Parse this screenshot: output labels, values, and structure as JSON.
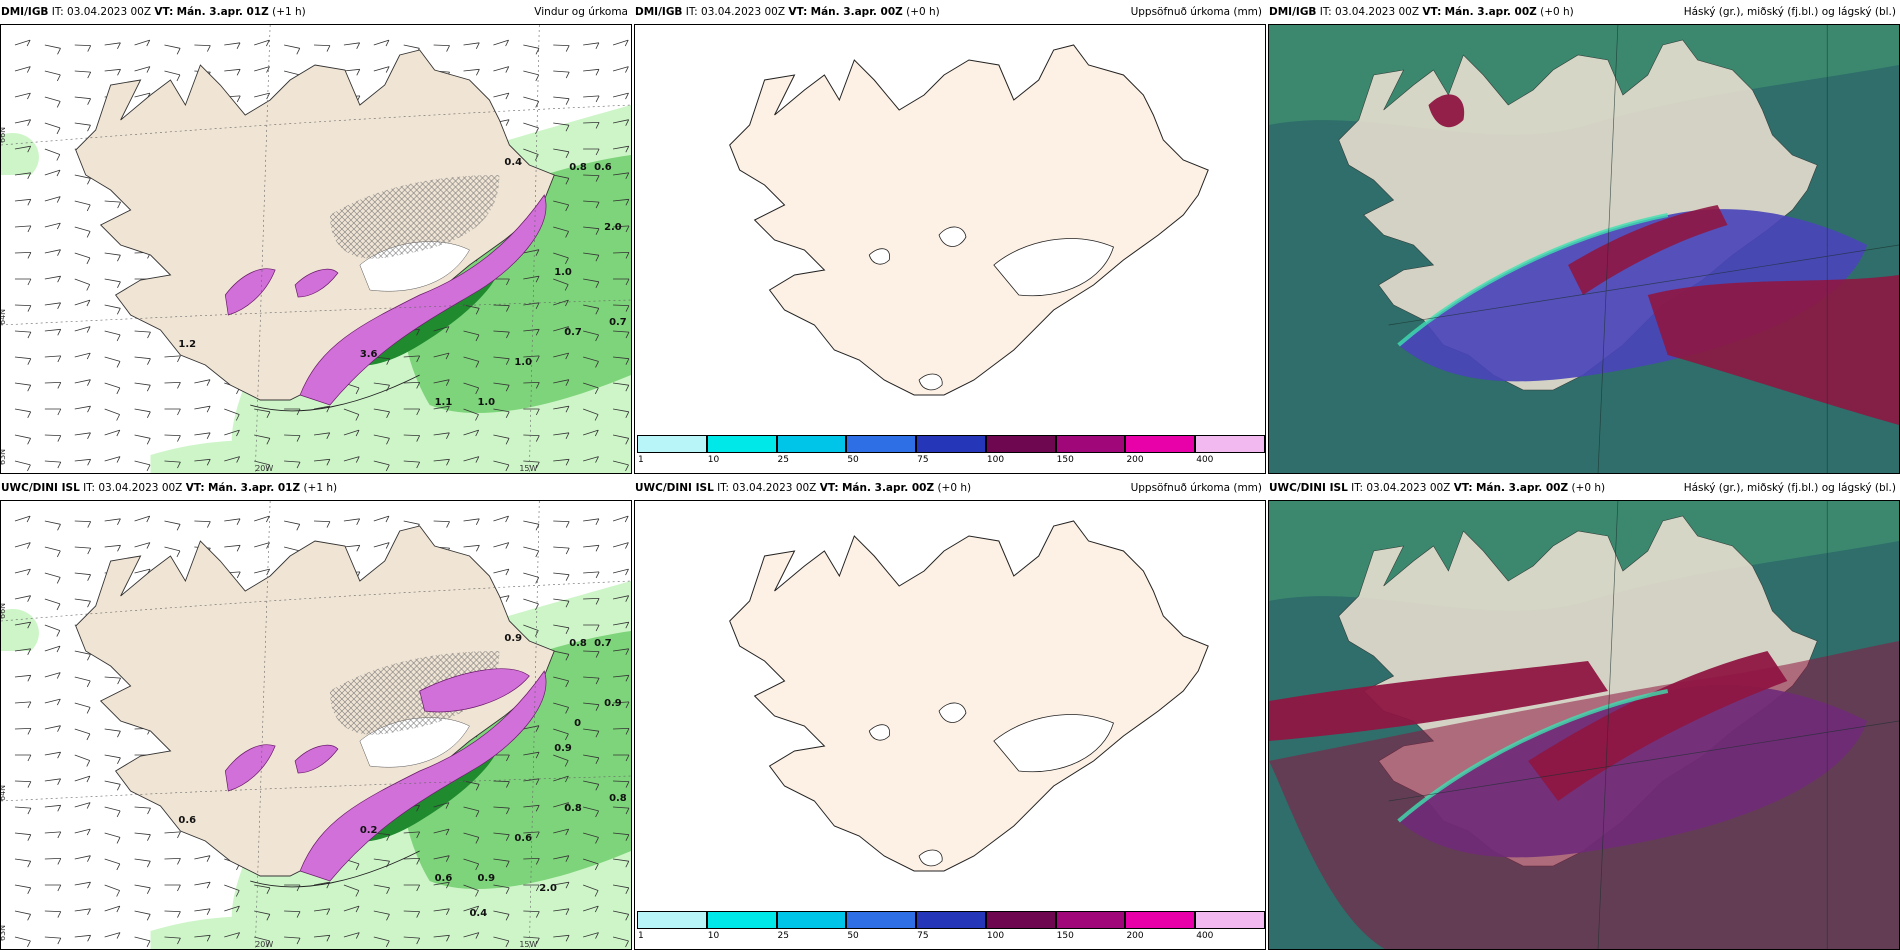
{
  "panels": [
    {
      "model": "DMI/IGB",
      "it": "IT: 03.04.2023 00Z",
      "vt_label": "VT:",
      "vt": "Mán. 3.apr. 01Z",
      "lead": "(+1 h)",
      "right": "Vindur og úrkoma"
    },
    {
      "model": "DMI/IGB",
      "it": "IT: 03.04.2023 00Z",
      "vt_label": "VT:",
      "vt": "Mán. 3.apr. 00Z",
      "lead": "(+0 h)",
      "right": "Uppsöfnuð úrkoma (mm)"
    },
    {
      "model": "DMI/IGB",
      "it": "IT: 03.04.2023 00Z",
      "vt_label": "VT:",
      "vt": "Mán. 3.apr. 00Z",
      "lead": "(+0 h)",
      "right": "Háský (gr.), miðský (fj.bl.) og lágský (bl.)"
    },
    {
      "model": "UWC/DINI ISL",
      "it": "IT: 03.04.2023 00Z",
      "vt_label": "VT:",
      "vt": "Mán. 3.apr. 01Z",
      "lead": "(+1 h)",
      "right": ""
    },
    {
      "model": "UWC/DINI ISL",
      "it": "IT: 03.04.2023 00Z",
      "vt_label": "VT:",
      "vt": "Mán. 3.apr. 00Z",
      "lead": "(+0 h)",
      "right": "Uppsöfnuð úrkoma (mm)"
    },
    {
      "model": "UWC/DINI ISL",
      "it": "IT: 03.04.2023 00Z",
      "vt_label": "VT:",
      "vt": "Mán. 3.apr. 00Z",
      "lead": "(+0 h)",
      "right": "Háský (gr.), miðský (fj.bl.) og lágský (bl.)"
    }
  ],
  "grid_labels": {
    "lat66": "66N",
    "lat64": "64N",
    "lat63": "63N",
    "lon20": "20W",
    "lon15": "15W"
  },
  "precip_values_top": [
    "0.8",
    "0.6",
    "2.0",
    "1.0",
    "0.7",
    "0.7",
    "1.0",
    "1.1",
    "1.0",
    "1.2",
    "3.6",
    "0.4"
  ],
  "precip_values_bottom": [
    "0.8",
    "0.7",
    "0.9",
    "0.9",
    "0.8",
    "0.8",
    "0.6",
    "0.6",
    "0.9",
    "0.6",
    "0.2",
    "0.9",
    "0.4",
    "2.0",
    "0"
  ],
  "colorbar": {
    "ticks": [
      "1",
      "10",
      "25",
      "50",
      "75",
      "100",
      "150",
      "200",
      "400"
    ],
    "colors": [
      "#b7f5f8",
      "#00e8e8",
      "#00c5e8",
      "#2f6fe6",
      "#2536b8",
      "#6e0650",
      "#a0087a",
      "#e800a8",
      "#f2b8f0"
    ]
  },
  "colors": {
    "land": "#f0e4d4",
    "land_cumulative": "#fdf0e4",
    "sea_green_light": "#cdf5c8",
    "sea_green_mid": "#7ed47a",
    "sea_green_dark": "#1f8a2e",
    "precip_pink": "#d070d8",
    "cloud_teal": "#2f6e6a",
    "cloud_purple": "#4a44b8",
    "cloud_red": "#8e1642"
  }
}
